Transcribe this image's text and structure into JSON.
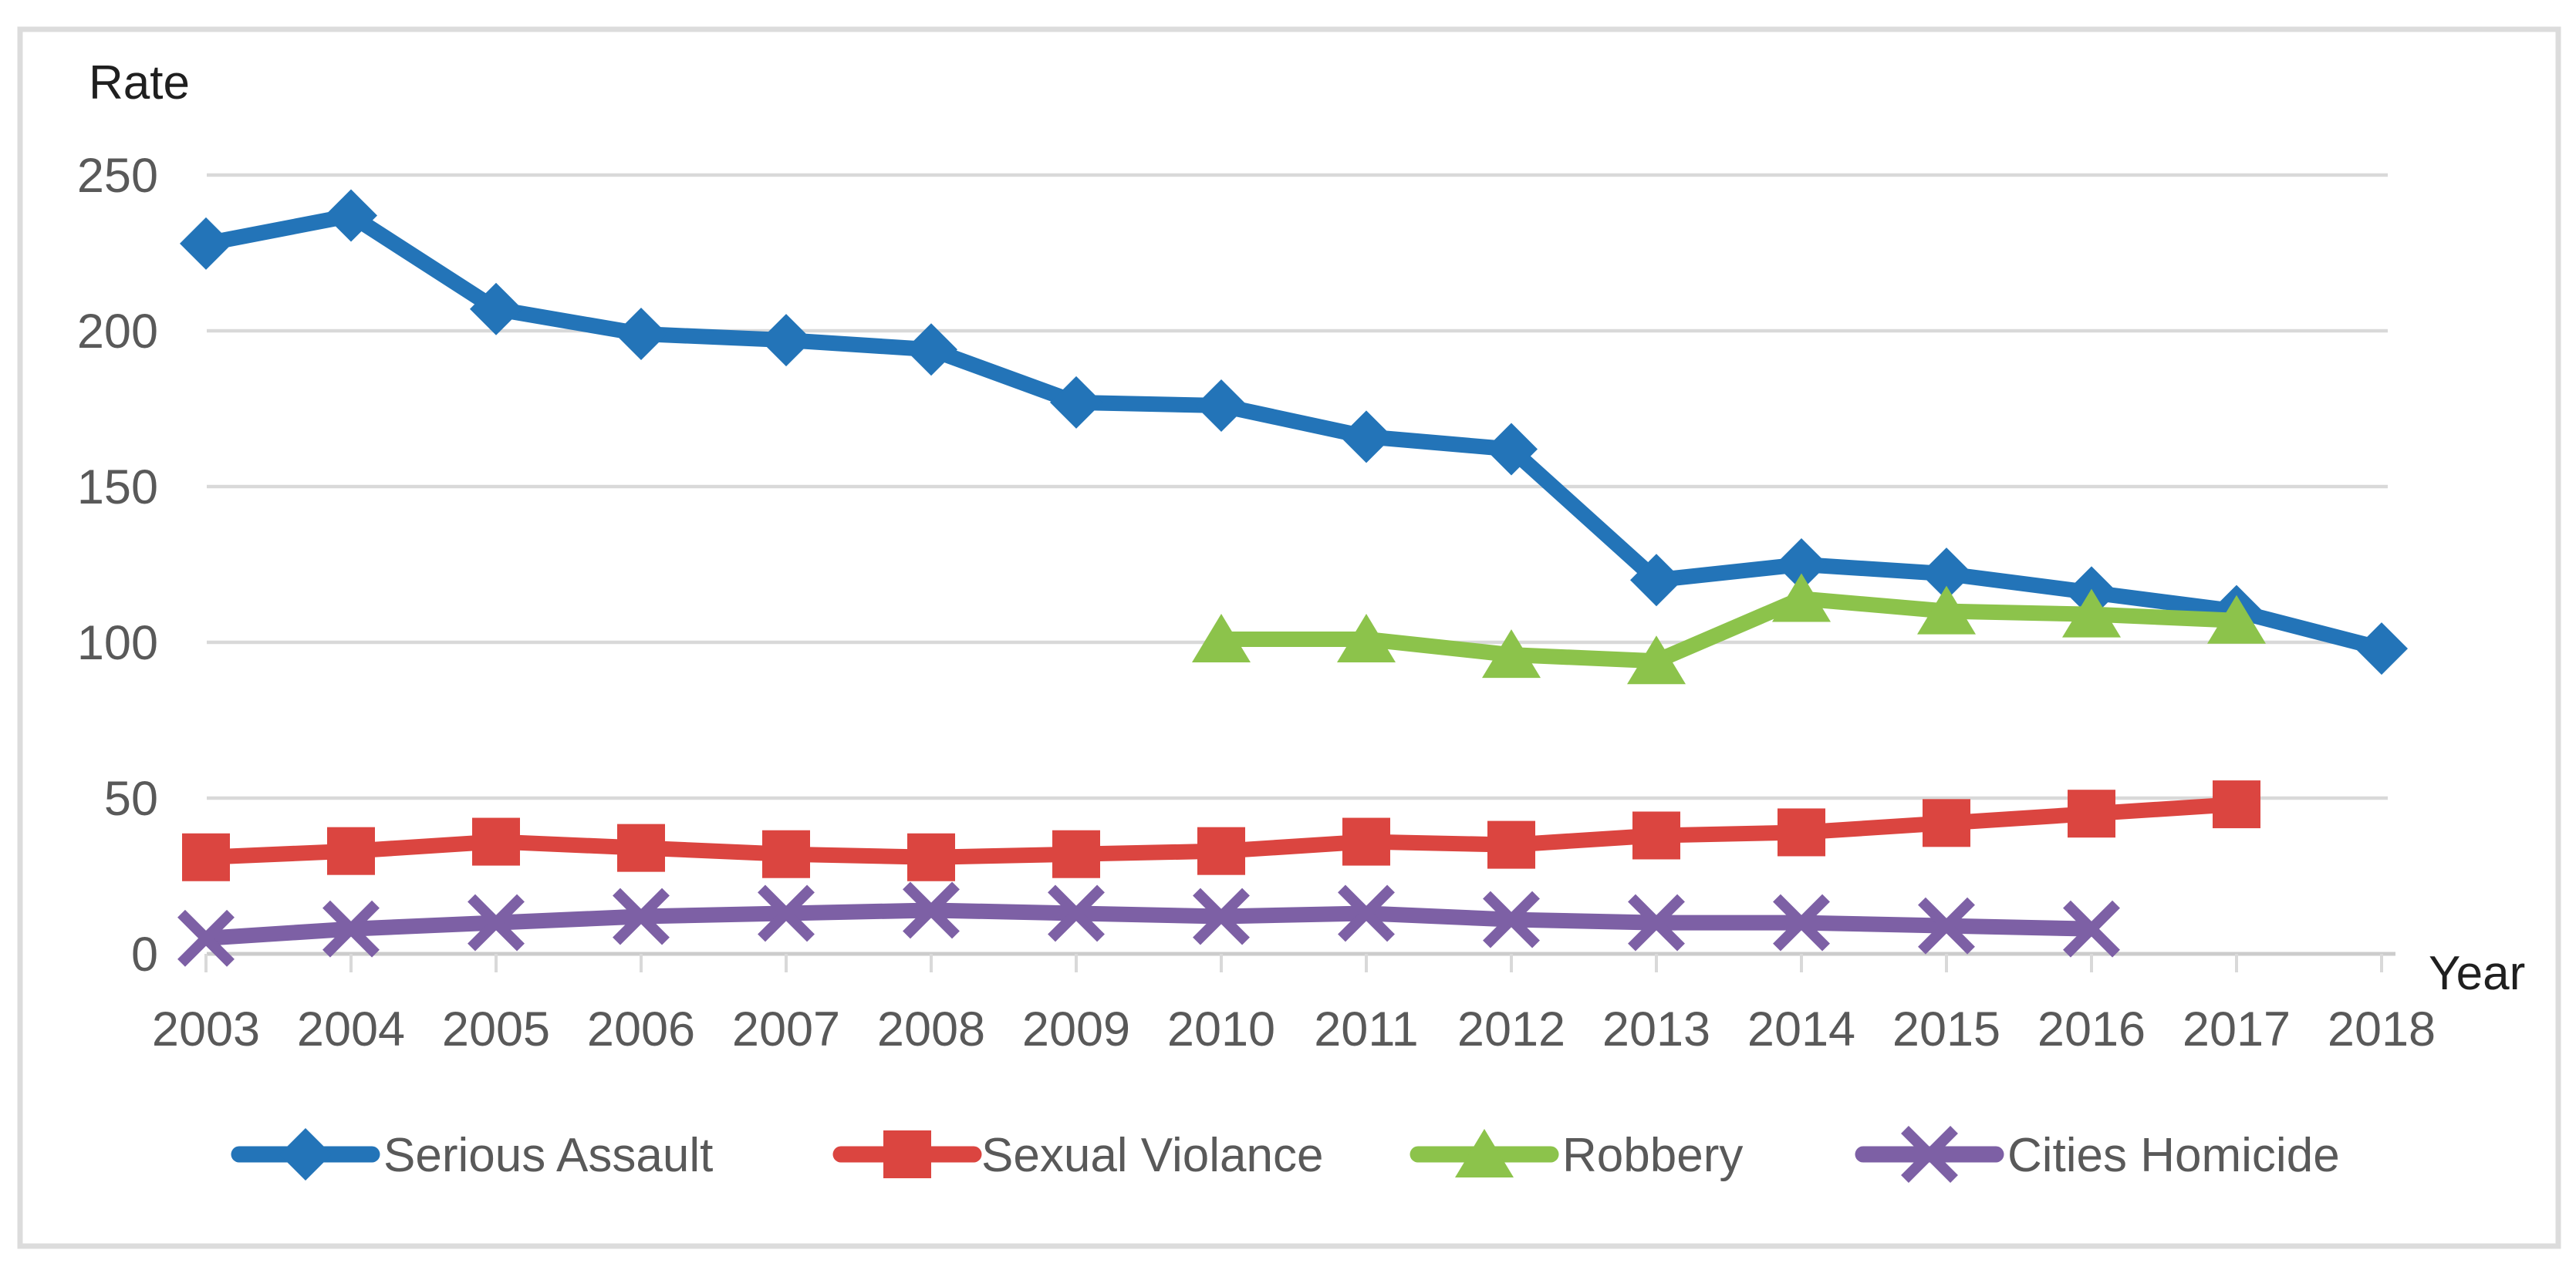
{
  "chart_data": {
    "type": "line",
    "y_axis_title": "Rate",
    "x_axis_title": "Year",
    "categories": [
      "2003",
      "2004",
      "2005",
      "2006",
      "2007",
      "2008",
      "2009",
      "2010",
      "2011",
      "2012",
      "2013",
      "2014",
      "2015",
      "2016",
      "2017",
      "2018"
    ],
    "yticks": [
      0,
      50,
      100,
      150,
      200,
      250
    ],
    "ylim": [
      0,
      250
    ],
    "grid": "horizontal",
    "legend_position": "bottom",
    "series": [
      {
        "name": "Serious Assault",
        "marker": "diamond",
        "color": "#2374B8",
        "start_index": 0,
        "values": [
          228,
          237,
          207,
          199,
          197,
          194,
          177,
          176,
          166,
          162,
          120,
          125,
          122,
          116,
          110,
          98
        ]
      },
      {
        "name": "Sexual Violance",
        "marker": "square",
        "color": "#DB4540",
        "start_index": 0,
        "values": [
          31,
          33,
          36,
          34,
          32,
          31,
          32,
          33,
          36,
          35,
          38,
          39,
          42,
          45,
          48
        ]
      },
      {
        "name": "Robbery",
        "marker": "triangle",
        "color": "#8CC34B",
        "start_index": 7,
        "values": [
          101,
          101,
          96,
          94,
          114,
          110,
          109,
          107
        ]
      },
      {
        "name": "Cities Homicide",
        "marker": "xmark",
        "color": "#7D60A5",
        "start_index": 0,
        "values": [
          5,
          8,
          10,
          12,
          13,
          14,
          13,
          12,
          13,
          11,
          10,
          10,
          9,
          8
        ]
      }
    ],
    "colors": {
      "gridline": "#D9D9D9",
      "axis_line": "#CCCCCC",
      "tick_text": "#595959",
      "axis_title_text": "#1F1F1F",
      "legend_text": "#595959",
      "frame_border": "#DCDCDC",
      "background": "#FFFFFF"
    }
  }
}
